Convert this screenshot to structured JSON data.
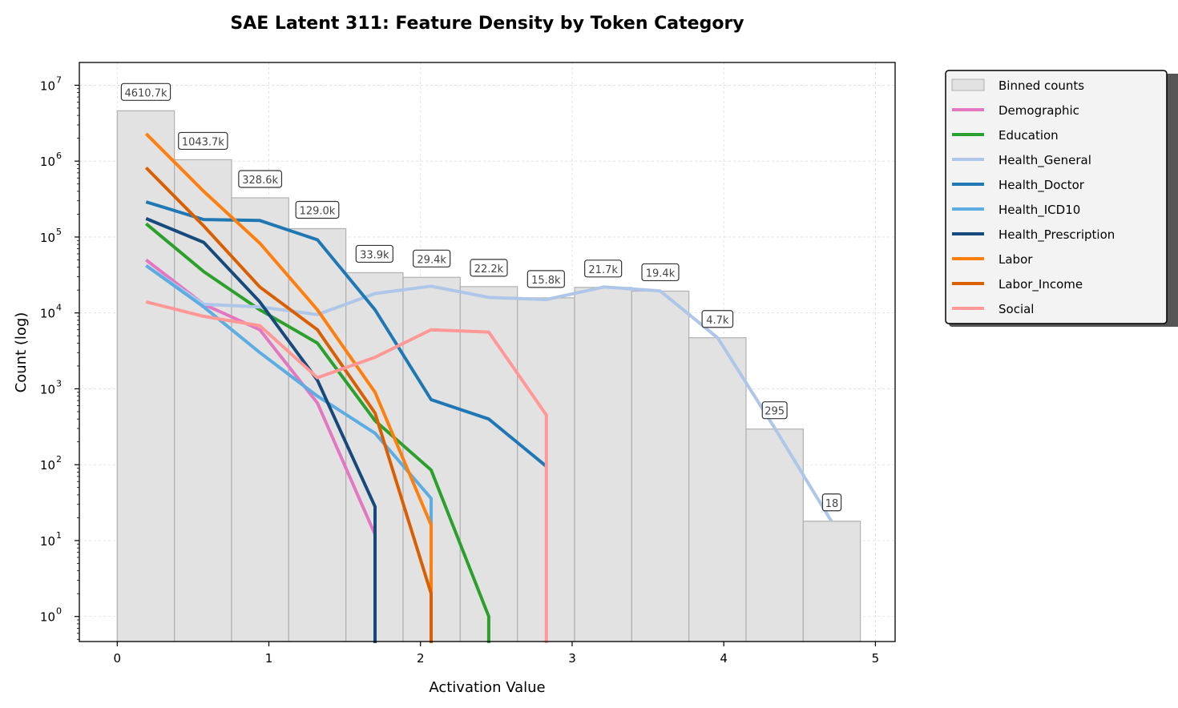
{
  "chart_data": {
    "type": "bar",
    "title": "SAE Latent 311: Feature Density by Token Category",
    "xlabel": "Activation Value",
    "ylabel": "Count (log)",
    "xlim": [
      -0.25,
      5.13
    ],
    "ylim_log10": [
      -0.33,
      7.3
    ],
    "yscale": "log",
    "grid": true,
    "legend_position": "outside-right",
    "x_ticks": [
      0,
      1,
      2,
      3,
      4,
      5
    ],
    "x_tick_labels": [
      "0",
      "1",
      "2",
      "3",
      "4",
      "5"
    ],
    "y_tick_exponents": [
      0,
      1,
      2,
      3,
      4,
      5,
      6,
      7
    ],
    "bars": {
      "name": "Binned counts",
      "edges": [
        0.0,
        0.377,
        0.754,
        1.131,
        1.508,
        1.885,
        2.262,
        2.639,
        3.016,
        3.393,
        3.77,
        4.147,
        4.524,
        4.901
      ],
      "values": [
        4610700,
        1043700,
        328600,
        129000,
        33900,
        29400,
        22200,
        15800,
        21700,
        19400,
        4700,
        295,
        18
      ],
      "labels": [
        "4610.7k",
        "1043.7k",
        "328.6k",
        "129.0k",
        "33.9k",
        "29.4k",
        "22.2k",
        "15.8k",
        "21.7k",
        "19.4k",
        "4.7k",
        "295",
        "18"
      ],
      "color": "#e2e2e2",
      "edge_color": "#b0b0b0"
    },
    "series": [
      {
        "name": "Demographic",
        "color": "#e377c2",
        "x": [
          0.19,
          0.57,
          0.94,
          1.32,
          1.7
        ],
        "y": [
          50000,
          13000,
          6000,
          650,
          12
        ]
      },
      {
        "name": "Education",
        "color": "#2ca02c",
        "x": [
          0.19,
          0.57,
          0.94,
          1.32,
          1.7,
          2.07,
          2.45,
          2.45
        ],
        "y": [
          150000,
          35000,
          11000,
          4000,
          380,
          85,
          1,
          0.1
        ]
      },
      {
        "name": "Health_General",
        "color": "#aec7e8",
        "x": [
          0.19,
          0.57,
          0.94,
          1.32,
          1.7,
          2.07,
          2.45,
          2.83,
          3.21,
          3.58,
          3.96,
          4.34,
          4.71
        ],
        "y": [
          42000,
          13000,
          12000,
          9500,
          18000,
          22500,
          16000,
          15000,
          22000,
          19500,
          4700,
          295,
          18
        ]
      },
      {
        "name": "Health_Doctor",
        "color": "#1f77b4",
        "x": [
          0.19,
          0.57,
          0.94,
          1.32,
          1.7,
          2.07,
          2.45,
          2.83
        ],
        "y": [
          290000,
          170000,
          165000,
          92000,
          11000,
          720,
          400,
          95
        ]
      },
      {
        "name": "Health_ICD10",
        "color": "#5dade2",
        "x": [
          0.19,
          0.57,
          0.94,
          1.32,
          1.7,
          2.07,
          2.07
        ],
        "y": [
          42000,
          12000,
          3000,
          800,
          260,
          36,
          0.1
        ]
      },
      {
        "name": "Health_Prescription",
        "color": "#174a7c",
        "x": [
          0.19,
          0.57,
          0.94,
          1.32,
          1.7,
          1.7
        ],
        "y": [
          175000,
          85000,
          14000,
          1300,
          28,
          0.1
        ]
      },
      {
        "name": "Labor",
        "color": "#ff7f0e",
        "x": [
          0.19,
          0.57,
          0.94,
          1.32,
          1.7,
          2.07,
          2.07
        ],
        "y": [
          2300000,
          400000,
          83000,
          11000,
          900,
          16,
          0.1
        ]
      },
      {
        "name": "Labor_Income",
        "color": "#d95f02",
        "x": [
          0.19,
          0.57,
          0.94,
          1.32,
          1.7,
          2.07,
          2.07
        ],
        "y": [
          820000,
          140000,
          22000,
          6000,
          480,
          2,
          0.1
        ]
      },
      {
        "name": "Social",
        "color": "#ff9896",
        "x": [
          0.19,
          0.57,
          0.94,
          1.32,
          1.7,
          2.07,
          2.45,
          2.83,
          2.83
        ],
        "y": [
          14000,
          9000,
          6800,
          1400,
          2600,
          6000,
          5600,
          450,
          0.1
        ]
      }
    ]
  }
}
